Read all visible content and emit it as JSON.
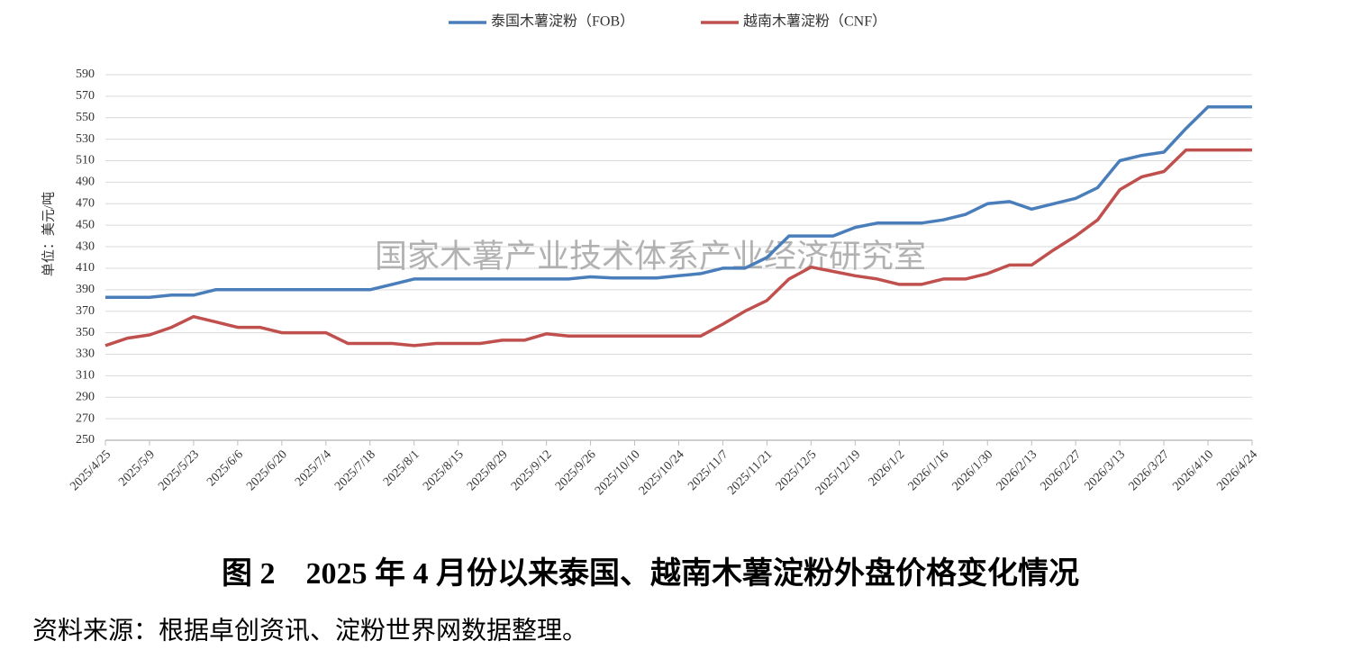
{
  "chart_data": {
    "type": "line",
    "ylabel": "单位：美元/吨",
    "watermark": "国家木薯产业技术体系产业经济研究室",
    "caption": "图 2　2025 年 4 月份以来泰国、越南木薯淀粉外盘价格变化情况",
    "source": "资料来源：根据卓创资讯、淀粉世界网数据整理。",
    "categories": [
      "2025/4/25",
      null,
      "2025/5/9",
      null,
      "2025/5/23",
      null,
      "2025/6/6",
      null,
      "2025/6/20",
      null,
      "2025/7/4",
      null,
      "2025/7/18",
      null,
      "2025/8/1",
      null,
      "2025/8/15",
      null,
      "2025/8/29",
      null,
      "2025/9/12",
      null,
      "2025/9/26",
      null,
      "2025/10/10",
      null,
      "2025/10/24",
      null,
      "2025/11/7",
      null,
      "2025/11/21",
      null,
      "2025/12/5",
      null,
      "2025/12/19",
      null,
      "2026/1/2",
      null,
      "2026/1/16",
      null,
      "2026/1/30",
      null,
      "2026/2/13",
      null,
      "2026/2/27",
      null,
      "2026/3/13",
      null,
      "2026/3/27",
      null,
      "2026/4/10",
      null,
      "2026/4/24"
    ],
    "series": [
      {
        "name": "泰国木薯淀粉（FOB）",
        "color": "#4a7ebb",
        "values": [
          383,
          383,
          383,
          385,
          385,
          390,
          390,
          390,
          390,
          390,
          390,
          390,
          390,
          395,
          400,
          400,
          400,
          400,
          400,
          400,
          400,
          400,
          402,
          401,
          401,
          401,
          403,
          405,
          410,
          410,
          420,
          440,
          440,
          440,
          448,
          452,
          452,
          452,
          455,
          460,
          470,
          472,
          465,
          470,
          475,
          485,
          510,
          515,
          518,
          540,
          560,
          560,
          560
        ]
      },
      {
        "name": "越南木薯淀粉（CNF）",
        "color": "#c0504d",
        "values": [
          338,
          345,
          348,
          355,
          365,
          360,
          355,
          355,
          350,
          350,
          350,
          340,
          340,
          340,
          338,
          340,
          340,
          340,
          343,
          343,
          349,
          347,
          347,
          347,
          347,
          347,
          347,
          347,
          358,
          370,
          380,
          400,
          411,
          407,
          403,
          400,
          395,
          395,
          400,
          400,
          405,
          413,
          413,
          427,
          440,
          455,
          483,
          495,
          500,
          520,
          520,
          520,
          520
        ]
      }
    ],
    "ylim": [
      250,
      590
    ],
    "yticks": [
      250,
      270,
      290,
      310,
      330,
      350,
      370,
      390,
      410,
      430,
      450,
      470,
      490,
      510,
      530,
      550,
      570,
      590
    ],
    "grid": true,
    "legend": "top"
  }
}
